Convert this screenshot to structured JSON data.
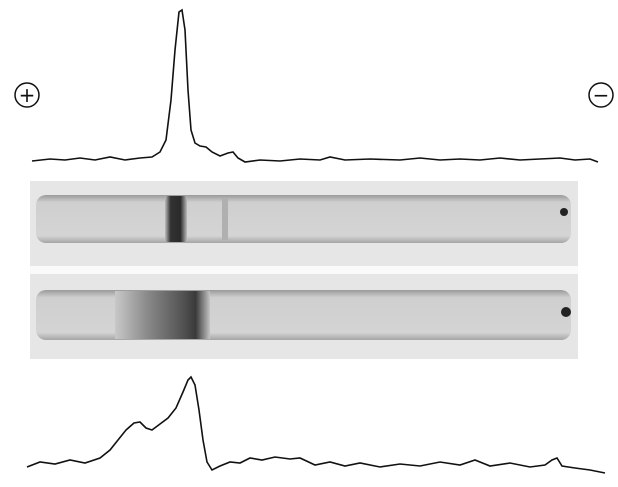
{
  "labels": {
    "anode": "+",
    "cathode": "−"
  }
}
